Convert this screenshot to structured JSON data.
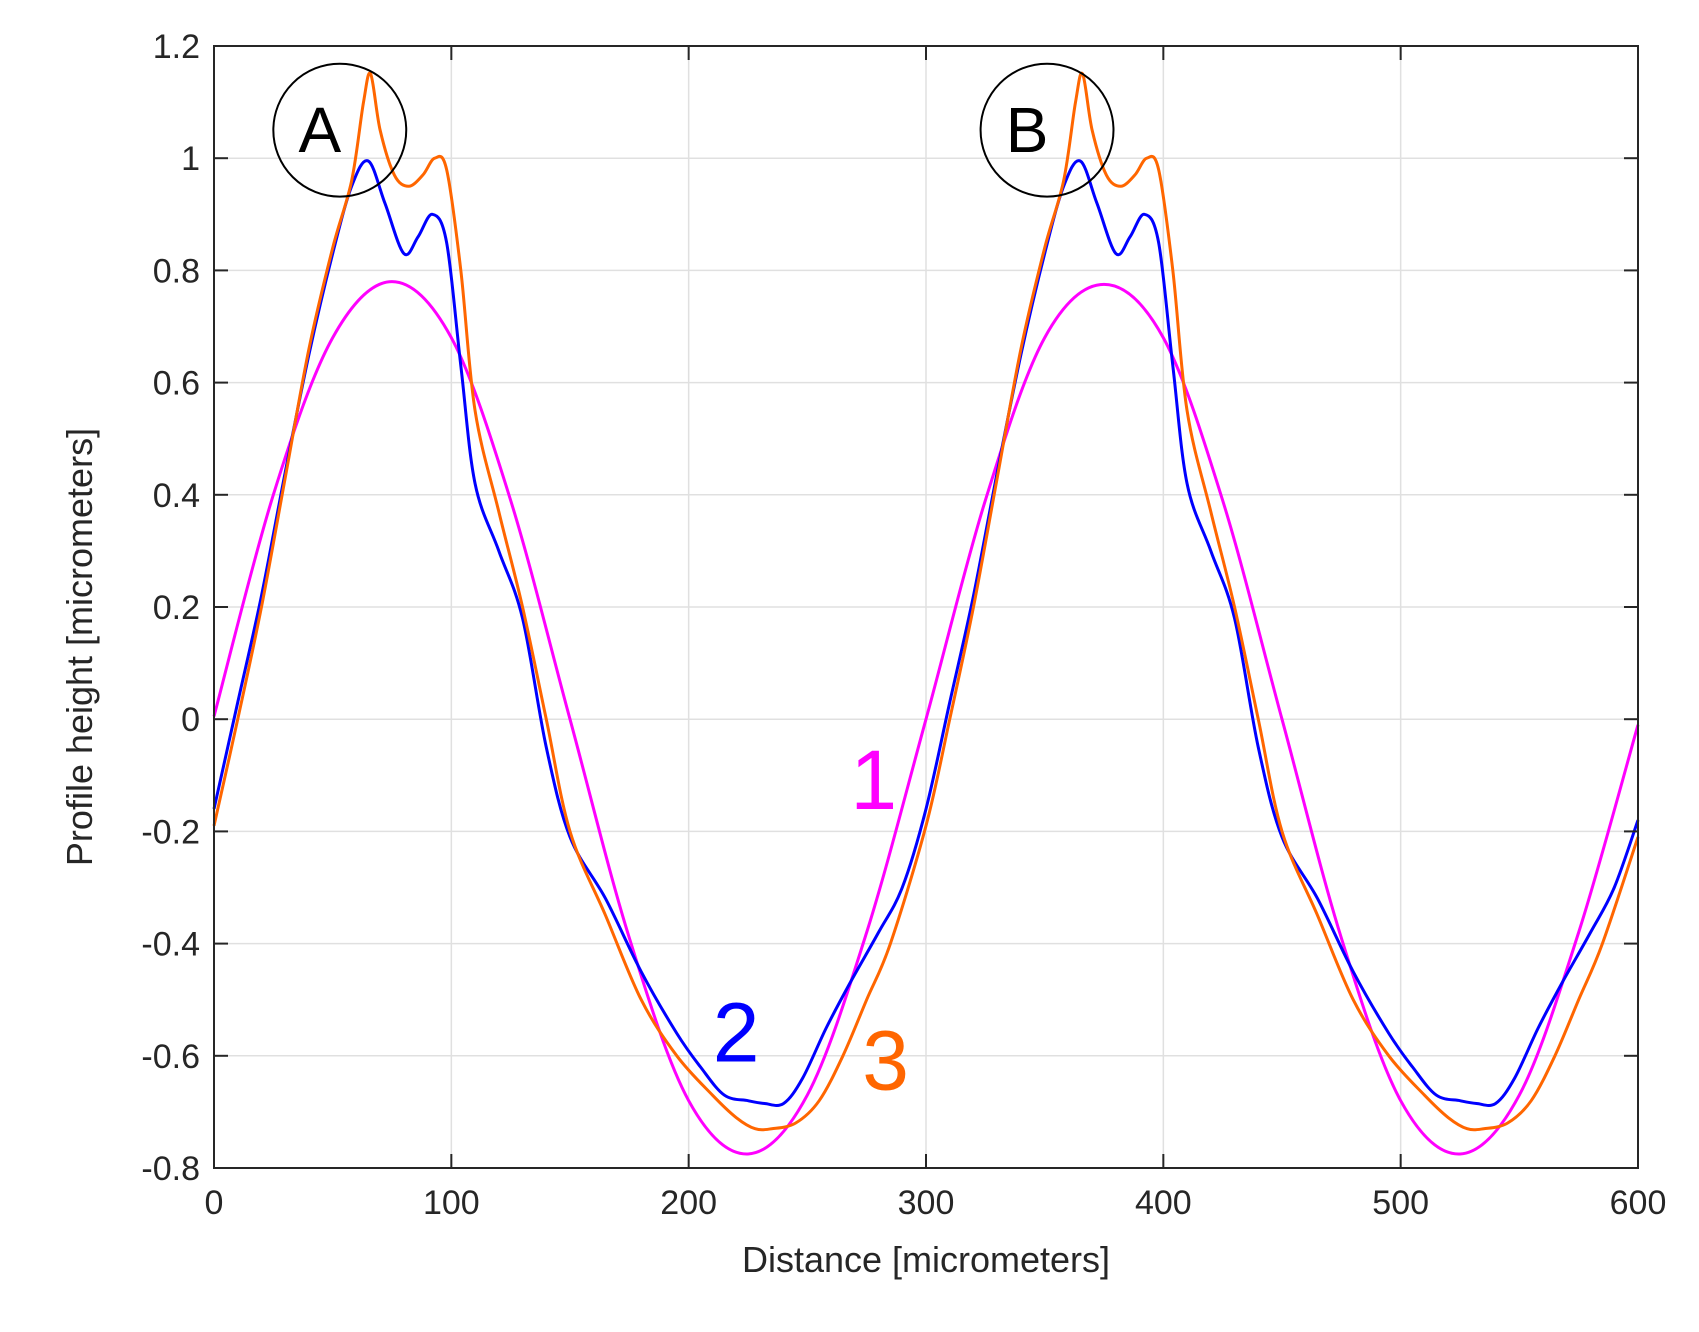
{
  "chart_data": {
    "type": "line",
    "title": "",
    "xlabel": "Distance [micrometers]",
    "ylabel": "Profile height [micrometers]",
    "xlim": [
      0,
      600
    ],
    "ylim": [
      -0.8,
      1.2
    ],
    "xticks": [
      0,
      100,
      200,
      300,
      400,
      500,
      600
    ],
    "yticks": [
      1.2,
      1,
      0.8,
      0.6,
      0.4,
      0.2,
      0,
      -0.2,
      -0.4,
      -0.6,
      -0.8
    ],
    "xtick_labels": [
      "0",
      "100",
      "200",
      "300",
      "400",
      "500",
      "600"
    ],
    "ytick_labels": [
      "1.2",
      "1",
      "0.8",
      "0.6",
      "0.4",
      "0.2",
      "0",
      "-0.2",
      "-0.4",
      "-0.6",
      "-0.8"
    ],
    "grid": true,
    "series": [
      {
        "name": "1",
        "label": "1",
        "color": "#ff00ff",
        "label_pos": [
          278,
          -0.16
        ],
        "x": [
          0,
          25,
          50,
          75,
          100,
          125,
          150,
          175,
          200,
          225,
          250,
          275,
          300,
          325,
          350,
          375,
          400,
          425,
          450,
          475,
          500,
          525,
          550,
          575,
          600
        ],
        "y": [
          0.005,
          0.4,
          0.68,
          0.78,
          0.68,
          0.39,
          0.0,
          -0.39,
          -0.68,
          -0.775,
          -0.67,
          -0.38,
          0.0,
          0.39,
          0.68,
          0.775,
          0.68,
          0.39,
          0.0,
          -0.39,
          -0.68,
          -0.775,
          -0.67,
          -0.38,
          -0.01
        ]
      },
      {
        "name": "2",
        "label": "2",
        "color": "#0000ff",
        "label_pos": [
          220,
          -0.61
        ],
        "x": [
          0,
          10,
          20,
          30,
          40,
          50,
          58,
          65,
          72,
          80,
          86,
          92,
          98,
          104,
          110,
          120,
          130,
          140,
          150,
          165,
          180,
          195,
          205,
          215,
          225,
          232,
          240,
          248,
          258,
          268,
          280,
          290,
          300,
          310,
          320,
          330,
          340,
          350,
          358,
          365,
          372,
          380,
          386,
          392,
          398,
          404,
          410,
          420,
          430,
          440,
          450,
          465,
          480,
          495,
          505,
          515,
          525,
          532,
          540,
          548,
          558,
          568,
          580,
          590,
          600
        ],
        "y": [
          -0.16,
          0.03,
          0.22,
          0.44,
          0.65,
          0.83,
          0.95,
          0.995,
          0.92,
          0.83,
          0.86,
          0.9,
          0.85,
          0.63,
          0.42,
          0.3,
          0.18,
          -0.05,
          -0.21,
          -0.32,
          -0.45,
          -0.56,
          -0.62,
          -0.67,
          -0.68,
          -0.685,
          -0.685,
          -0.64,
          -0.55,
          -0.47,
          -0.38,
          -0.3,
          -0.16,
          0.03,
          0.22,
          0.44,
          0.65,
          0.83,
          0.95,
          0.995,
          0.92,
          0.83,
          0.86,
          0.9,
          0.85,
          0.63,
          0.42,
          0.3,
          0.18,
          -0.05,
          -0.21,
          -0.32,
          -0.45,
          -0.56,
          -0.62,
          -0.67,
          -0.68,
          -0.685,
          -0.685,
          -0.64,
          -0.55,
          -0.47,
          -0.38,
          -0.3,
          -0.18
        ]
      },
      {
        "name": "3",
        "label": "3",
        "color": "#ff6600",
        "label_pos": [
          283,
          -0.66
        ],
        "x": [
          0,
          10,
          20,
          30,
          40,
          50,
          58,
          63,
          66,
          70,
          76,
          82,
          88,
          93,
          98,
          104,
          110,
          120,
          130,
          140,
          150,
          165,
          180,
          195,
          210,
          220,
          228,
          235,
          245,
          255,
          265,
          275,
          285,
          300,
          310,
          320,
          330,
          340,
          350,
          358,
          363,
          366,
          370,
          376,
          382,
          388,
          393,
          398,
          404,
          410,
          420,
          430,
          440,
          450,
          465,
          480,
          495,
          510,
          520,
          528,
          535,
          545,
          555,
          565,
          575,
          585,
          600
        ],
        "y": [
          -0.19,
          0.0,
          0.2,
          0.43,
          0.66,
          0.84,
          0.96,
          1.1,
          1.15,
          1.05,
          0.97,
          0.95,
          0.97,
          1.0,
          0.98,
          0.8,
          0.55,
          0.37,
          0.2,
          0.0,
          -0.2,
          -0.35,
          -0.5,
          -0.6,
          -0.67,
          -0.71,
          -0.73,
          -0.73,
          -0.72,
          -0.68,
          -0.6,
          -0.5,
          -0.4,
          -0.19,
          0.0,
          0.2,
          0.43,
          0.66,
          0.84,
          0.96,
          1.1,
          1.15,
          1.05,
          0.97,
          0.95,
          0.97,
          1.0,
          0.98,
          0.8,
          0.55,
          0.37,
          0.2,
          0.0,
          -0.2,
          -0.35,
          -0.5,
          -0.6,
          -0.67,
          -0.71,
          -0.73,
          -0.73,
          -0.72,
          -0.68,
          -0.6,
          -0.5,
          -0.4,
          -0.21
        ]
      }
    ],
    "annotations": [
      {
        "text": "A",
        "x": 53,
        "y": 1.05,
        "radius_data_x": 28
      },
      {
        "text": "B",
        "x": 351,
        "y": 1.05,
        "radius_data_x": 28
      }
    ]
  }
}
